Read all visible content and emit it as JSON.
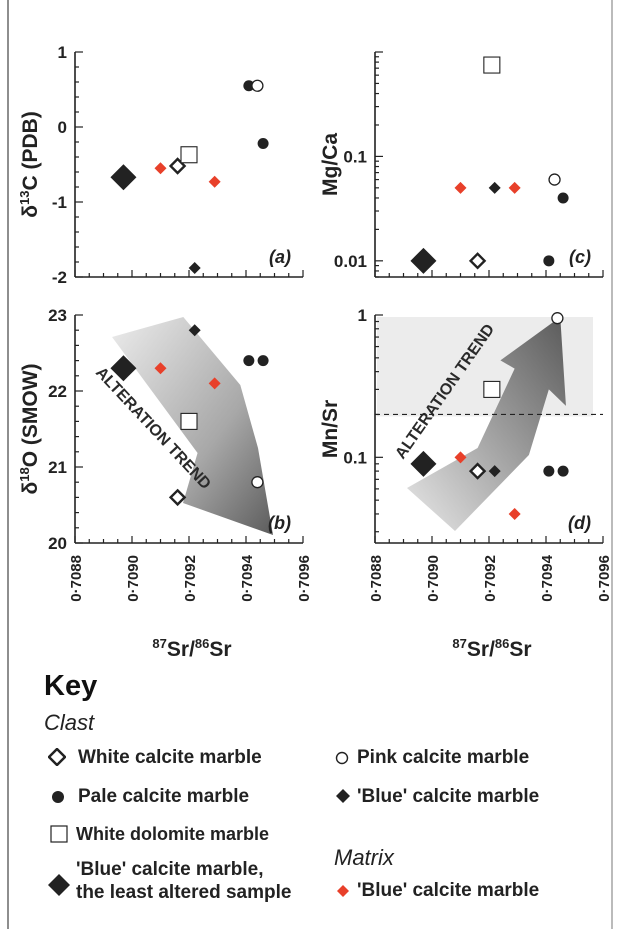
{
  "colors": {
    "black": "#222222",
    "red": "#e8402a",
    "trend_gradient_light": "#e6e6e6",
    "trend_gradient_dark": "#6e6e6e"
  },
  "chart_data": [
    {
      "id": "a",
      "type": "scatter",
      "panel_label": "(a)",
      "ylabel_main": "δ",
      "ylabel_sup": "13",
      "ylabel_rest": "C (PDB)",
      "xlim": [
        0.7088,
        0.7096
      ],
      "ylim": [
        -2,
        1
      ],
      "yticks": [
        1,
        0,
        -1,
        -2
      ],
      "ytick_labels": [
        "1",
        "0",
        "-1",
        "-2"
      ],
      "points": [
        {
          "sample": "blue_least",
          "x": 0.70897,
          "y": -0.67
        },
        {
          "sample": "matrix_blue",
          "x": 0.7091,
          "y": -0.55
        },
        {
          "sample": "white_calcite",
          "x": 0.70916,
          "y": -0.52
        },
        {
          "sample": "white_dolomite",
          "x": 0.7092,
          "y": -0.37
        },
        {
          "sample": "matrix_blue",
          "x": 0.70929,
          "y": -0.73
        },
        {
          "sample": "blue_calcite",
          "x": 0.70922,
          "y": -1.88
        },
        {
          "sample": "pale_calcite",
          "x": 0.70941,
          "y": 0.55
        },
        {
          "sample": "pink_calcite",
          "x": 0.70944,
          "y": 0.55
        },
        {
          "sample": "pale_calcite",
          "x": 0.70946,
          "y": -0.22
        }
      ]
    },
    {
      "id": "c",
      "type": "scatter",
      "panel_label": "(c)",
      "ylabel": "Mg/Ca",
      "yscale": "log",
      "xlim": [
        0.7088,
        0.7096
      ],
      "ylim": [
        0.007,
        1
      ],
      "yticks": [
        0.1,
        0.01
      ],
      "ytick_labels": [
        "0.1",
        "0.01"
      ],
      "points": [
        {
          "sample": "blue_least",
          "x": 0.70897,
          "y": 0.01
        },
        {
          "sample": "white_calcite",
          "x": 0.70916,
          "y": 0.01
        },
        {
          "sample": "matrix_blue",
          "x": 0.7091,
          "y": 0.05
        },
        {
          "sample": "blue_calcite",
          "x": 0.70922,
          "y": 0.05
        },
        {
          "sample": "matrix_blue",
          "x": 0.70929,
          "y": 0.05
        },
        {
          "sample": "white_dolomite",
          "x": 0.70921,
          "y": 0.75
        },
        {
          "sample": "pink_calcite",
          "x": 0.70943,
          "y": 0.06
        },
        {
          "sample": "pale_calcite",
          "x": 0.70946,
          "y": 0.04
        },
        {
          "sample": "pale_calcite",
          "x": 0.70941,
          "y": 0.01
        }
      ]
    },
    {
      "id": "b",
      "type": "scatter",
      "panel_label": "(b)",
      "ylabel_main": "δ",
      "ylabel_sup": "18",
      "ylabel_rest": "O (SMOW)",
      "xlabel_sup1": "87",
      "xlabel_mid": "Sr/",
      "xlabel_sup2": "86",
      "xlabel_end": "Sr",
      "trend_label": "ALTERATION TREND",
      "xlim": [
        0.7088,
        0.7096
      ],
      "ylim": [
        20,
        23
      ],
      "yticks": [
        23,
        22,
        21,
        20
      ],
      "ytick_labels": [
        "23",
        "22",
        "21",
        "20"
      ],
      "xticks": [
        0.7088,
        0.709,
        0.7092,
        0.7094,
        0.7096
      ],
      "xtick_labels": [
        "0·7088",
        "0·7090",
        "0·7092",
        "0·7094",
        "0·7096"
      ],
      "points": [
        {
          "sample": "blue_least",
          "x": 0.70897,
          "y": 22.3
        },
        {
          "sample": "matrix_blue",
          "x": 0.7091,
          "y": 22.3
        },
        {
          "sample": "blue_calcite",
          "x": 0.70922,
          "y": 22.8
        },
        {
          "sample": "matrix_blue",
          "x": 0.70929,
          "y": 22.1
        },
        {
          "sample": "white_dolomite",
          "x": 0.7092,
          "y": 21.6
        },
        {
          "sample": "white_calcite",
          "x": 0.70916,
          "y": 20.6
        },
        {
          "sample": "pale_calcite",
          "x": 0.70941,
          "y": 22.4
        },
        {
          "sample": "pale_calcite",
          "x": 0.70946,
          "y": 22.4
        },
        {
          "sample": "pink_calcite",
          "x": 0.70944,
          "y": 20.8
        }
      ]
    },
    {
      "id": "d",
      "type": "scatter",
      "panel_label": "(d)",
      "ylabel": "Mn/Sr",
      "yscale": "log",
      "xlabel_sup1": "87",
      "xlabel_mid": "Sr/",
      "xlabel_sup2": "86",
      "xlabel_end": "Sr",
      "trend_label": "ALTERATION TREND",
      "dashed_line_y": 0.2,
      "xlim": [
        0.7088,
        0.7096
      ],
      "ylim": [
        0.025,
        1
      ],
      "yticks": [
        1,
        0.1
      ],
      "ytick_labels": [
        "1",
        "0.1"
      ],
      "xticks": [
        0.7088,
        0.709,
        0.7092,
        0.7094,
        0.7096
      ],
      "xtick_labels": [
        "0·7088",
        "0·7090",
        "0·7092",
        "0·7094",
        "0·7096"
      ],
      "points": [
        {
          "sample": "blue_least",
          "x": 0.70897,
          "y": 0.09
        },
        {
          "sample": "matrix_blue",
          "x": 0.7091,
          "y": 0.1
        },
        {
          "sample": "white_calcite",
          "x": 0.70916,
          "y": 0.08
        },
        {
          "sample": "blue_calcite",
          "x": 0.70922,
          "y": 0.08
        },
        {
          "sample": "white_dolomite",
          "x": 0.70921,
          "y": 0.3
        },
        {
          "sample": "matrix_blue",
          "x": 0.70929,
          "y": 0.04
        },
        {
          "sample": "pink_calcite",
          "x": 0.70944,
          "y": 0.95
        },
        {
          "sample": "pale_calcite",
          "x": 0.70941,
          "y": 0.08
        },
        {
          "sample": "pale_calcite",
          "x": 0.70946,
          "y": 0.08
        }
      ]
    }
  ],
  "key": {
    "title": "Key",
    "clast_label": "Clast",
    "matrix_label": "Matrix",
    "white_calcite": "White calcite marble",
    "pink_calcite": "Pink calcite marble",
    "pale_calcite": "Pale calcite marble",
    "blue_calcite": "'Blue' calcite marble",
    "white_dolomite": "White dolomite marble",
    "blue_least_line1": "'Blue' calcite marble,",
    "blue_least_line2": "the least altered sample",
    "matrix_blue": "'Blue' calcite marble"
  }
}
